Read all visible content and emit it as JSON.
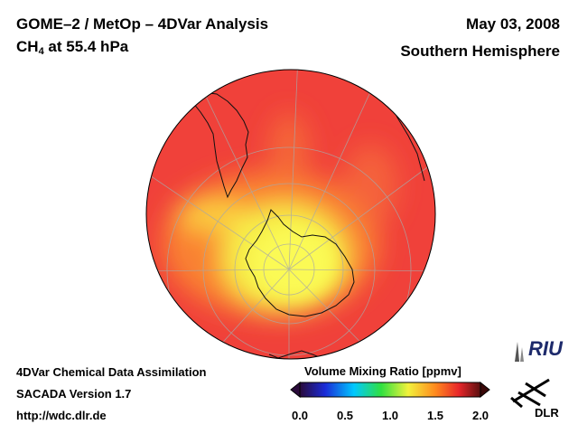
{
  "header": {
    "title_line1": "GOME–2 / MetOp – 4DVar Analysis",
    "title_line2_prefix": "CH",
    "title_line2_sub": "4",
    "title_line2_suffix": " at 55.4 hPa",
    "date": "May 03, 2008",
    "region": "Southern Hemisphere"
  },
  "footer": {
    "line1": "4DVar Chemical Data Assimilation",
    "line2": "SACADA Version 1.7",
    "line3": "http://wdc.dlr.de"
  },
  "colorbar": {
    "title": "Volume Mixing Ratio [ppmv]",
    "min": 0.0,
    "max": 2.0,
    "ticks": [
      "0.0",
      "0.5",
      "1.0",
      "1.5",
      "2.0"
    ],
    "colors": [
      "#2a0a3a",
      "#1a2bd8",
      "#00c8ff",
      "#30e040",
      "#f2f23c",
      "#ff8a1e",
      "#e8262a",
      "#5a0f0f"
    ]
  },
  "map": {
    "projection": "orthographic south polar",
    "field_colors": [
      "#f7f04a",
      "#fbd040",
      "#fb9030",
      "#f45a33",
      "#ee3a35"
    ]
  },
  "logos": {
    "riu": "RIU",
    "dlr": "DLR"
  }
}
